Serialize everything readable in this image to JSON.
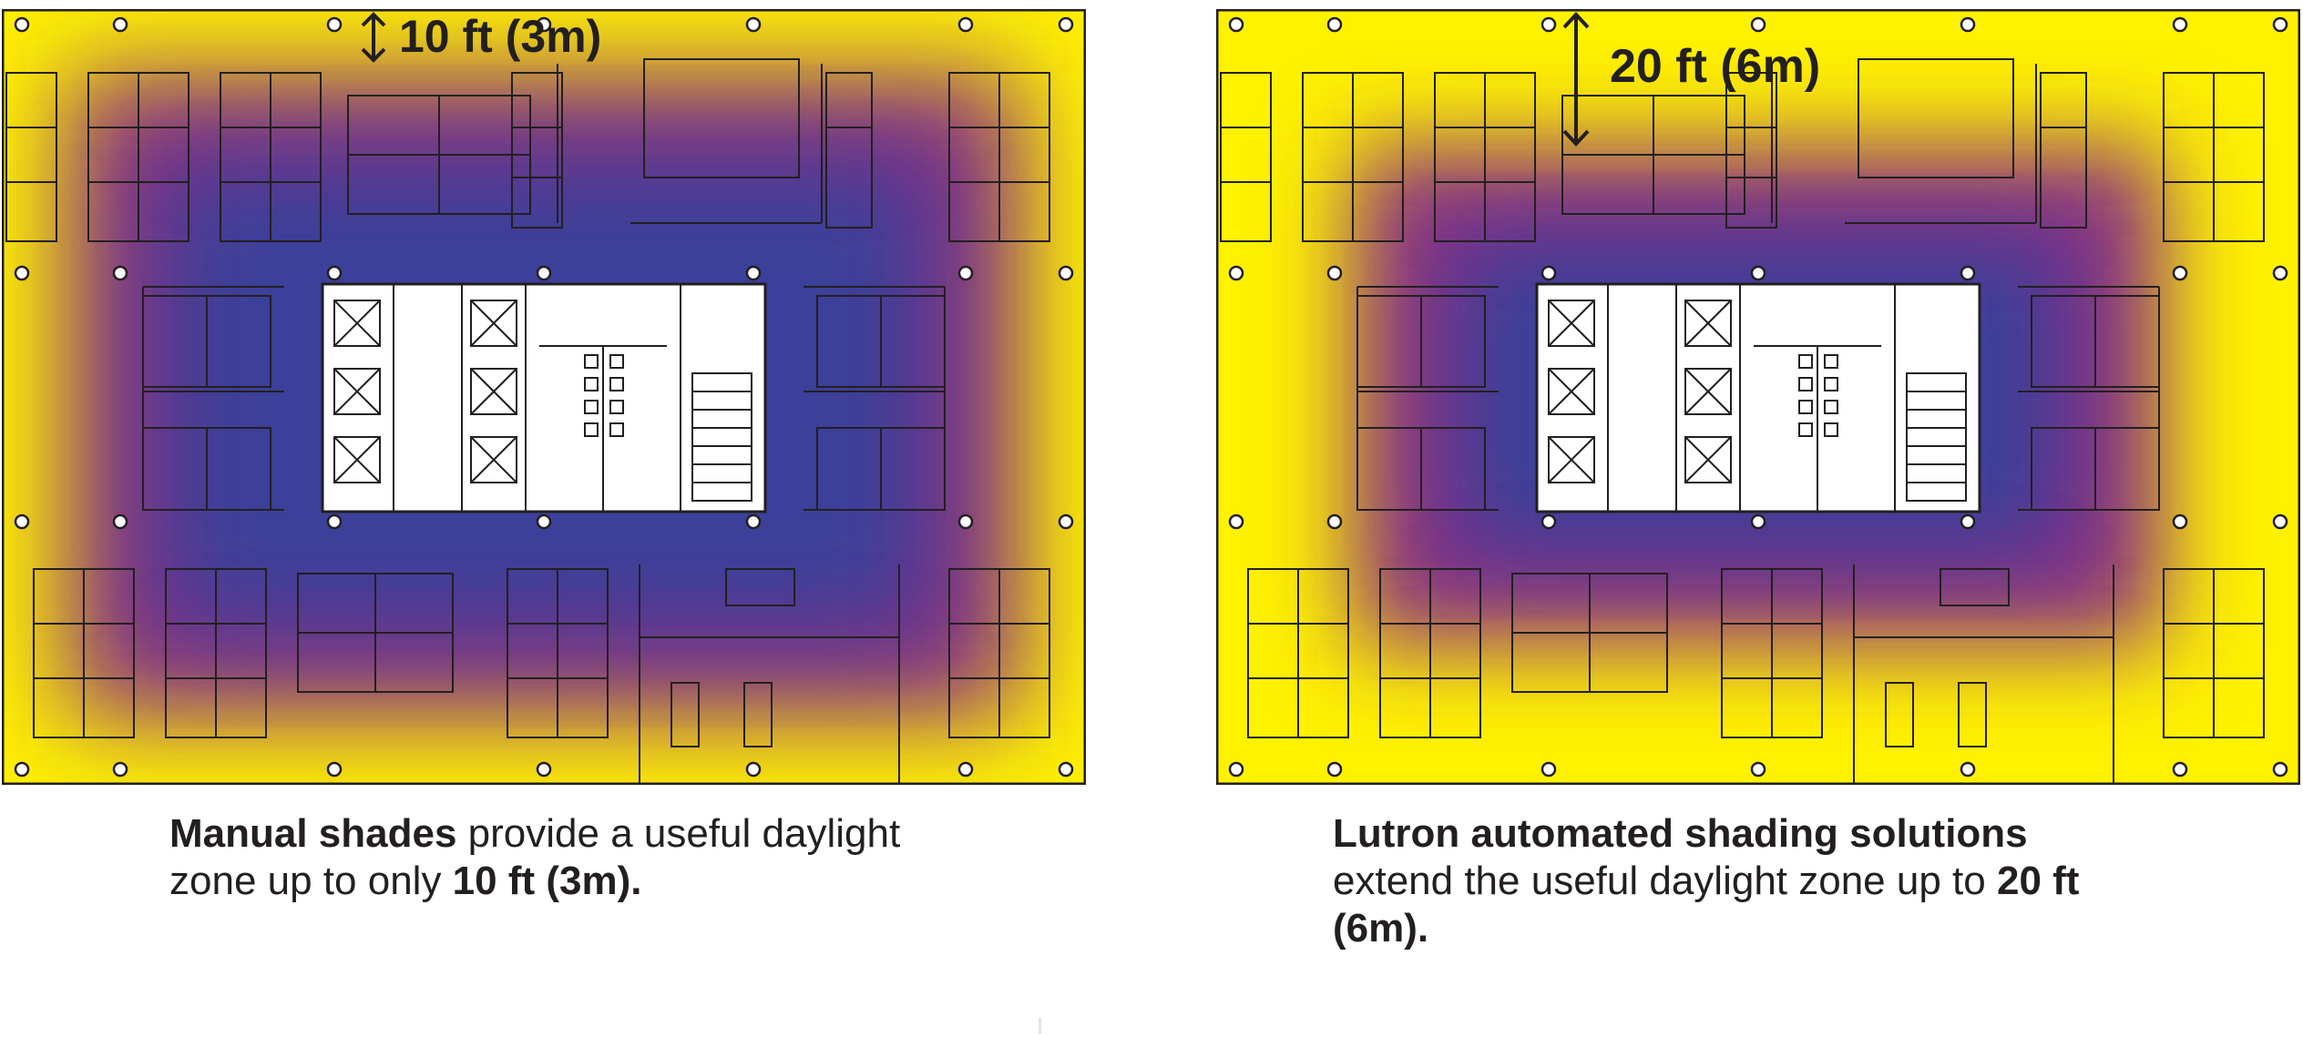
{
  "colors": {
    "daylight_zone": "#fff200",
    "mid_zone": "#8b2f82",
    "core_zone": "#3a3f9a",
    "lines": "#231f20"
  },
  "left": {
    "dimension_label": "10 ft (3m)",
    "caption": {
      "bold_lead": "Manual shades",
      "text_1": " provide a useful daylight zone up to only ",
      "bold_tail": "10 ft (3m)."
    }
  },
  "right": {
    "dimension_label": "20 ft (6m)",
    "caption": {
      "bold_lead": "Lutron automated shading solutions",
      "text_1": " extend the useful daylight zone up to ",
      "bold_tail": "20 ft (6m)."
    }
  }
}
